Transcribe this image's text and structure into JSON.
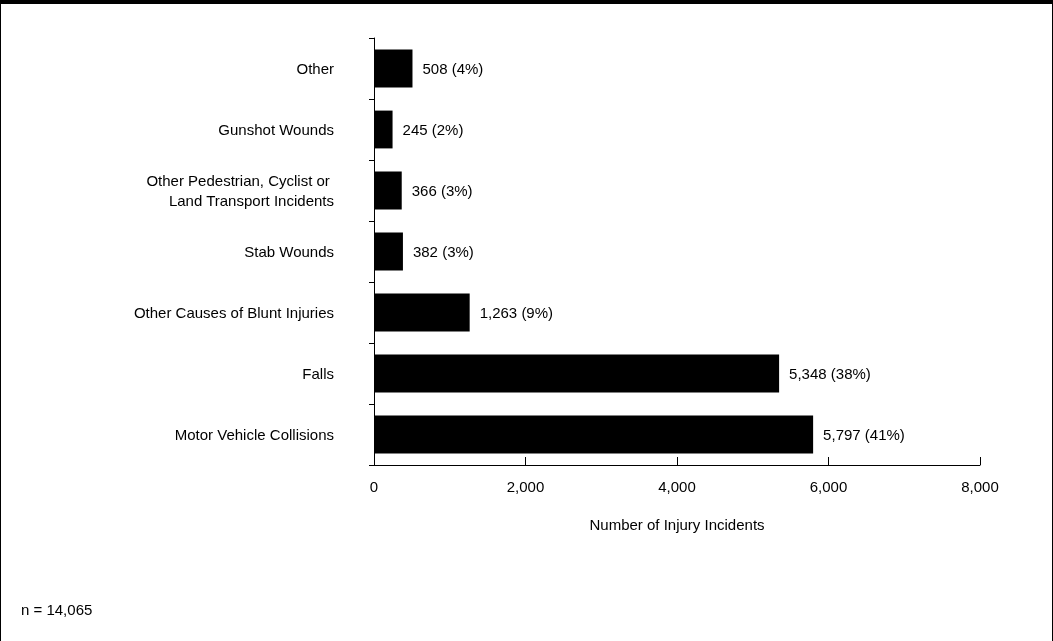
{
  "chart_data": {
    "type": "bar",
    "orientation": "horizontal",
    "categories": [
      "Other",
      "Gunshot Wounds",
      "Other Pedestrian, Cyclist or Land Transport Incidents",
      "Stab Wounds",
      "Other Causes of Blunt Injuries",
      "Falls",
      "Motor Vehicle Collisions"
    ],
    "values": [
      508,
      245,
      366,
      382,
      1263,
      5348,
      5797
    ],
    "value_labels": [
      "508 (4%)",
      "245 (2%)",
      "366 (3%)",
      "382 (3%)",
      "1,263 (9%)",
      "5,348 (38%)",
      "5,797 (41%)"
    ],
    "color": "#000000",
    "xlim": [
      0,
      8000
    ],
    "xticks": [
      0,
      {
        "value": 2000,
        "label": "2,000"
      },
      {
        "value": 4000,
        "label": "4,000"
      },
      {
        "value": 6000,
        "label": "6,000"
      },
      {
        "value": 8000,
        "label": "8,000"
      }
    ],
    "xlabel": "Number of Injury Incidents",
    "annotations": [
      "n = 14,065"
    ]
  }
}
